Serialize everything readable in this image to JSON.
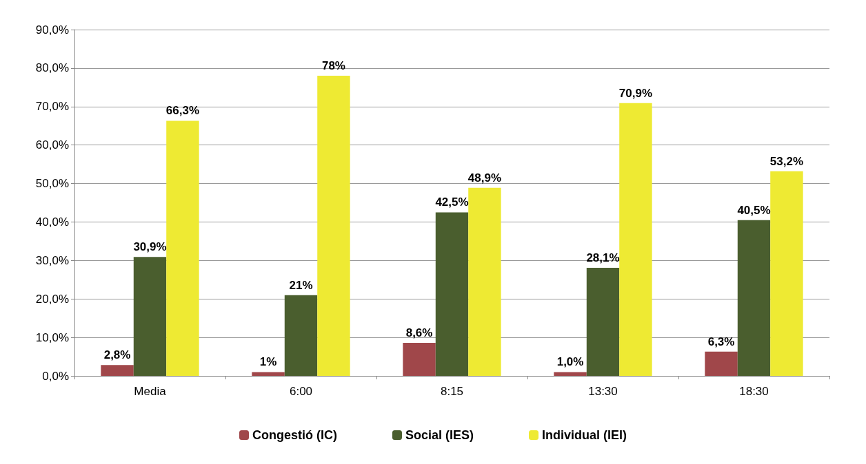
{
  "chart_data": {
    "type": "bar",
    "categories": [
      "Media",
      "6:00",
      "8:15",
      "13:30",
      "18:30"
    ],
    "series": [
      {
        "name": "Congestió (IC)",
        "color": "#a0474a",
        "values": [
          2.8,
          1,
          8.6,
          1.0,
          6.3
        ],
        "value_labels": [
          "2,8%",
          "1%",
          "8,6%",
          "1,0%",
          "6,3%"
        ]
      },
      {
        "name": "Social (IES)",
        "color": "#4a5e2e",
        "values": [
          30.9,
          21,
          42.5,
          28.1,
          40.5
        ],
        "value_labels": [
          "30,9%",
          "21%",
          "42,5%",
          "28,1%",
          "40,5%"
        ]
      },
      {
        "name": "Individual (IEI)",
        "color": "#eeea33",
        "values": [
          66.3,
          78,
          48.9,
          70.9,
          53.2
        ],
        "value_labels": [
          "66,3%",
          "78%",
          "48,9%",
          "70,9%",
          "53,2%"
        ]
      }
    ],
    "ylim": [
      0,
      90
    ],
    "yticks": [
      {
        "value": 0,
        "label": "0,0%"
      },
      {
        "value": 10,
        "label": "10,0%"
      },
      {
        "value": 20,
        "label": "20,0%"
      },
      {
        "value": 30,
        "label": "30,0%"
      },
      {
        "value": 40,
        "label": "40,0%"
      },
      {
        "value": 50,
        "label": "50,0%"
      },
      {
        "value": 60,
        "label": "60,0%"
      },
      {
        "value": 70,
        "label": "70,0%"
      },
      {
        "value": 80,
        "label": "80,0%"
      },
      {
        "value": 90,
        "label": "90,0%"
      }
    ],
    "grid": "y",
    "legend": "bottom"
  }
}
